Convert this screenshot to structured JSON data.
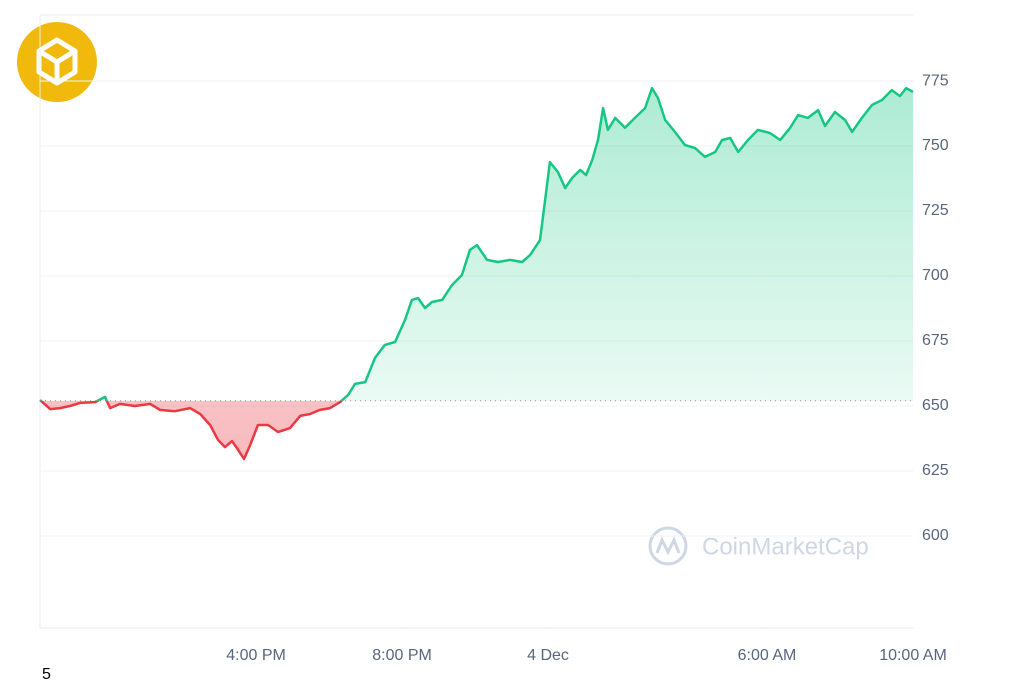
{
  "chart_data": {
    "type": "line",
    "x": [
      -13.92,
      -13.64,
      -13.37,
      -13.1,
      -12.82,
      -12.41,
      -12.14,
      -12.0,
      -11.73,
      -11.32,
      -10.9,
      -10.63,
      -10.22,
      -9.81,
      -9.53,
      -9.26,
      -9.04,
      -8.85,
      -8.66,
      -8.49,
      -8.33,
      -8.16,
      -7.95,
      -7.67,
      -7.4,
      -7.07,
      -6.79,
      -6.52,
      -6.25,
      -5.97,
      -5.7,
      -5.48,
      -5.29,
      -5.01,
      -4.74,
      -4.47,
      -4.19,
      -3.92,
      -3.73,
      -3.56,
      -3.37,
      -3.18,
      -2.9,
      -2.63,
      -2.36,
      -2.14,
      -1.95,
      -1.67,
      -1.37,
      -1.04,
      -0.71,
      -0.49,
      -0.22,
      -0.08,
      0.05,
      0.27,
      0.47,
      0.66,
      0.88,
      1.04,
      1.21,
      1.37,
      1.51,
      1.64,
      1.84,
      2.11,
      2.38,
      2.66,
      2.85,
      3.01,
      3.21,
      3.48,
      3.75,
      4.03,
      4.3,
      4.58,
      4.77,
      4.99,
      5.21,
      5.48,
      5.75,
      6.08,
      6.36,
      6.63,
      6.85,
      7.12,
      7.4,
      7.59,
      7.86,
      8.14,
      8.33,
      8.6,
      8.88,
      9.15,
      9.42,
      9.64,
      9.81,
      10.0
    ],
    "values": [
      652.3,
      648.8,
      649.2,
      650,
      651.2,
      651.5,
      653.5,
      649.2,
      650.8,
      650,
      650.8,
      648.5,
      648,
      649.2,
      646.9,
      642.7,
      636.9,
      634.2,
      636.5,
      633.1,
      629.6,
      635,
      642.7,
      642.7,
      640,
      641.5,
      646.2,
      646.9,
      648.5,
      649.2,
      651.5,
      654.2,
      658.5,
      659.2,
      668.5,
      673.5,
      674.6,
      683.1,
      690.8,
      691.5,
      687.7,
      690,
      690.8,
      696.5,
      700.4,
      710,
      711.9,
      706.2,
      705.4,
      706.2,
      705.4,
      708.1,
      713.8,
      729.2,
      743.8,
      740,
      733.8,
      737.7,
      740.8,
      738.8,
      744.6,
      752.3,
      764.6,
      756.2,
      760.8,
      757,
      760.8,
      764.6,
      772.3,
      768.5,
      760,
      755.4,
      750.4,
      749.2,
      745.8,
      747.7,
      752.3,
      753.1,
      747.7,
      752.3,
      756.2,
      755,
      752.3,
      756.9,
      761.9,
      760.8,
      763.8,
      757.7,
      763.1,
      760,
      755.4,
      760.8,
      765.8,
      767.7,
      771.5,
      769.2,
      772.3,
      770.8
    ],
    "color": "#16c784",
    "down_color": "#ea3943",
    "baseline": 652,
    "xlim": [
      -13.92,
      10
    ],
    "xticks": [
      {
        "value": -8,
        "label": "4:00 PM"
      },
      {
        "value": -4,
        "label": "8:00 PM"
      },
      {
        "value": 0,
        "label": "4 Dec"
      },
      {
        "value": 6,
        "label": "6:00 AM"
      },
      {
        "value": 10,
        "label": "10:00 AM"
      }
    ],
    "ylim": [
      564.6,
      800.4
    ],
    "yticks": [
      600,
      625,
      650,
      675,
      700,
      725,
      750,
      775
    ],
    "grid": true,
    "watermark": "CoinMarketCap",
    "footnote": "5"
  }
}
